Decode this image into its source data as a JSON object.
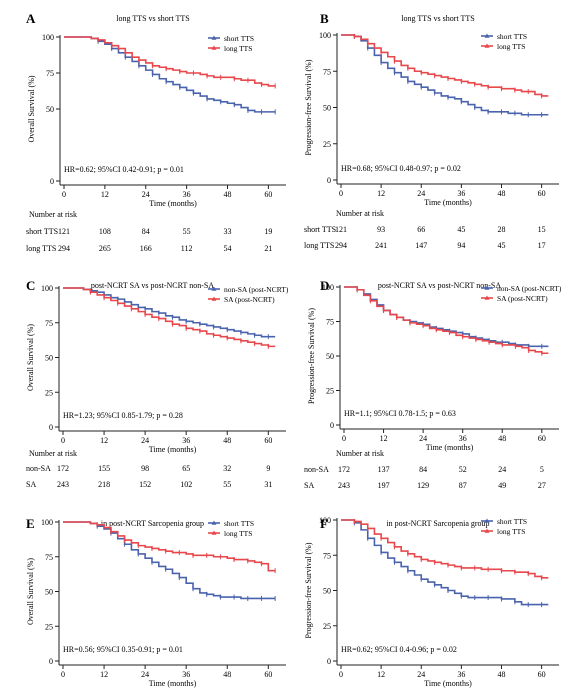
{
  "colors": {
    "blue": "#4a63ad",
    "red": "#e8474b",
    "axis": "#222222"
  },
  "common": {
    "xlabel": "Time (months)",
    "risk_title": "Number at risk"
  },
  "chart_data": [
    {
      "panel": "A",
      "type": "line",
      "title": "long TTS vs short TTS",
      "ylabel": "Overall Survival (%)",
      "xlabel": "Time (months)",
      "xlim": [
        0,
        64
      ],
      "ylim": [
        0,
        100
      ],
      "x_ticks": [
        0,
        12,
        24,
        36,
        48,
        60
      ],
      "y_ticks": [
        0,
        50,
        75,
        100
      ],
      "legend_position": "top-right",
      "annotation": "HR=0.62; 95%CI 0.42-0.91; p = 0.01",
      "series": [
        {
          "name": "short TTS",
          "color": "blue",
          "x": [
            0,
            8,
            10,
            12,
            14,
            16,
            18,
            20,
            22,
            24,
            26,
            28,
            30,
            32,
            34,
            36,
            38,
            40,
            42,
            44,
            46,
            48,
            50,
            52,
            54,
            56,
            58,
            60,
            62
          ],
          "y": [
            100,
            99,
            97,
            95,
            92,
            89,
            86,
            83,
            80,
            77,
            74,
            71,
            69,
            67,
            65,
            63,
            61,
            59,
            57,
            56,
            55,
            54,
            53,
            51,
            49,
            48,
            48,
            48,
            48
          ]
        },
        {
          "name": "long TTS",
          "color": "red",
          "x": [
            0,
            8,
            10,
            12,
            14,
            16,
            18,
            20,
            22,
            24,
            26,
            28,
            30,
            32,
            34,
            36,
            38,
            40,
            42,
            44,
            46,
            48,
            50,
            52,
            54,
            56,
            58,
            60,
            62
          ],
          "y": [
            100,
            99,
            98,
            96,
            94,
            92,
            89,
            86,
            84,
            82,
            80,
            79,
            78,
            77,
            76,
            75,
            75,
            74,
            73,
            72,
            72,
            72,
            71,
            70,
            70,
            68,
            67,
            66,
            66
          ]
        }
      ],
      "risk_table": {
        "times": [
          0,
          12,
          24,
          36,
          48,
          60
        ],
        "rows": [
          {
            "label": "short TTS",
            "values": [
              121,
              108,
              84,
              55,
              33,
              19
            ]
          },
          {
            "label": "long TTS",
            "values": [
              294,
              265,
              166,
              112,
              54,
              21
            ]
          }
        ]
      }
    },
    {
      "panel": "B",
      "type": "line",
      "title": "long TTS vs short TTS",
      "ylabel": "Progression-free Survival (%)",
      "xlabel": "Time (months)",
      "xlim": [
        0,
        64
      ],
      "ylim": [
        0,
        100
      ],
      "x_ticks": [
        0,
        12,
        24,
        36,
        48,
        60
      ],
      "y_ticks": [
        0,
        25,
        50,
        75,
        100
      ],
      "legend_position": "top-right",
      "annotation": "HR=0.68; 95%CI 0.48-0.97; p = 0.02",
      "series": [
        {
          "name": "short TTS",
          "color": "blue",
          "x": [
            0,
            2,
            4,
            6,
            8,
            10,
            12,
            14,
            16,
            18,
            20,
            22,
            24,
            26,
            28,
            30,
            32,
            34,
            36,
            38,
            40,
            42,
            44,
            46,
            48,
            50,
            52,
            54,
            56,
            58,
            60,
            62
          ],
          "y": [
            100,
            100,
            99,
            96,
            91,
            86,
            81,
            77,
            74,
            71,
            68,
            66,
            64,
            62,
            60,
            58,
            57,
            56,
            54,
            52,
            50,
            48,
            47,
            47,
            47,
            46,
            46,
            45,
            45,
            45,
            45,
            45
          ]
        },
        {
          "name": "long TTS",
          "color": "red",
          "x": [
            0,
            2,
            4,
            6,
            8,
            10,
            12,
            14,
            16,
            18,
            20,
            22,
            24,
            26,
            28,
            30,
            32,
            34,
            36,
            38,
            40,
            42,
            44,
            46,
            48,
            50,
            52,
            54,
            56,
            58,
            60,
            62
          ],
          "y": [
            100,
            100,
            99,
            97,
            94,
            91,
            88,
            85,
            82,
            79,
            77,
            75,
            74,
            73,
            72,
            71,
            70,
            69,
            68,
            67,
            66,
            65,
            64,
            64,
            63,
            63,
            62,
            61,
            61,
            59,
            58,
            58
          ]
        }
      ],
      "risk_table": {
        "times": [
          0,
          12,
          24,
          36,
          48,
          60
        ],
        "rows": [
          {
            "label": "short TTS",
            "values": [
              121,
              93,
              66,
              45,
              28,
              15
            ]
          },
          {
            "label": "long TTS",
            "values": [
              294,
              241,
              147,
              94,
              45,
              17
            ]
          }
        ]
      }
    },
    {
      "panel": "C",
      "type": "line",
      "title": "post-NCRT SA vs post-NCRT non-SA",
      "ylabel": "Overall Survival (%)",
      "xlabel": "Time (months)",
      "xlim": [
        0,
        64
      ],
      "ylim": [
        0,
        100
      ],
      "x_ticks": [
        0,
        12,
        24,
        36,
        48,
        60
      ],
      "y_ticks": [
        0,
        25,
        50,
        75,
        100
      ],
      "legend_position": "top-right",
      "annotation": "HR=1.23; 95%CI 0.85-1.79; p = 0.28",
      "series": [
        {
          "name": "non-SA (post-NCRT)",
          "color": "blue",
          "x": [
            0,
            6,
            8,
            10,
            12,
            14,
            16,
            18,
            20,
            22,
            24,
            26,
            28,
            30,
            32,
            34,
            36,
            38,
            40,
            42,
            44,
            46,
            48,
            50,
            52,
            54,
            56,
            58,
            60,
            62
          ],
          "y": [
            100,
            99,
            98,
            97,
            95,
            93,
            92,
            90,
            88,
            86,
            85,
            83,
            82,
            80,
            79,
            77,
            76,
            75,
            74,
            73,
            72,
            71,
            70,
            69,
            68,
            67,
            66,
            65,
            65,
            65
          ]
        },
        {
          "name": "SA (post-NCRT)",
          "color": "red",
          "x": [
            0,
            6,
            8,
            10,
            12,
            14,
            16,
            18,
            20,
            22,
            24,
            26,
            28,
            30,
            32,
            34,
            36,
            38,
            40,
            42,
            44,
            46,
            48,
            50,
            52,
            54,
            56,
            58,
            60,
            62
          ],
          "y": [
            100,
            99,
            97,
            95,
            93,
            91,
            89,
            87,
            85,
            83,
            81,
            79,
            78,
            76,
            74,
            73,
            71,
            70,
            69,
            67,
            66,
            65,
            64,
            63,
            62,
            61,
            60,
            59,
            58,
            58
          ]
        }
      ],
      "risk_table": {
        "times": [
          0,
          12,
          24,
          36,
          48,
          60
        ],
        "rows": [
          {
            "label": "non-SA",
            "values": [
              172,
              155,
              98,
              65,
              32,
              9
            ]
          },
          {
            "label": "SA",
            "values": [
              243,
              218,
              152,
              102,
              55,
              31
            ]
          }
        ]
      }
    },
    {
      "panel": "D",
      "type": "line",
      "title": "post-NCRT SA vs post-NCRT non-SA",
      "ylabel": "Progression-free Survival (%)",
      "xlabel": "Time (months)",
      "xlim": [
        0,
        64
      ],
      "ylim": [
        0,
        100
      ],
      "x_ticks": [
        0,
        12,
        24,
        36,
        48,
        60
      ],
      "y_ticks": [
        0,
        25,
        50,
        75,
        100
      ],
      "legend_position": "top-right",
      "annotation": "HR=1.1; 95%CI 0.78-1.5; p = 0.63",
      "series": [
        {
          "name": "non-SA (post-NCRT)",
          "color": "blue",
          "x": [
            0,
            2,
            4,
            6,
            8,
            10,
            12,
            14,
            16,
            18,
            20,
            22,
            24,
            26,
            28,
            30,
            32,
            34,
            36,
            38,
            40,
            42,
            44,
            46,
            48,
            50,
            52,
            54,
            56,
            58,
            60,
            62
          ],
          "y": [
            100,
            100,
            98,
            95,
            91,
            87,
            83,
            80,
            78,
            76,
            75,
            74,
            73,
            71,
            70,
            69,
            68,
            67,
            66,
            64,
            63,
            62,
            61,
            60,
            60,
            59,
            58,
            58,
            57,
            57,
            57,
            57
          ]
        },
        {
          "name": "SA (post-NCRT)",
          "color": "red",
          "x": [
            0,
            2,
            4,
            6,
            8,
            10,
            12,
            14,
            16,
            18,
            20,
            22,
            24,
            26,
            28,
            30,
            32,
            34,
            36,
            38,
            40,
            42,
            44,
            46,
            48,
            50,
            52,
            54,
            56,
            58,
            60,
            62
          ],
          "y": [
            100,
            100,
            98,
            94,
            90,
            86,
            83,
            80,
            78,
            76,
            74,
            73,
            72,
            70,
            69,
            68,
            67,
            65,
            64,
            63,
            62,
            61,
            60,
            59,
            58,
            58,
            57,
            56,
            54,
            53,
            52,
            52
          ]
        }
      ],
      "risk_table": {
        "times": [
          0,
          12,
          24,
          36,
          48,
          60
        ],
        "rows": [
          {
            "label": "non-SA",
            "values": [
              172,
              137,
              84,
              52,
              24,
              5
            ]
          },
          {
            "label": "SA",
            "values": [
              243,
              197,
              129,
              87,
              49,
              27
            ]
          }
        ]
      }
    },
    {
      "panel": "E",
      "type": "line",
      "title": "in post-NCRT Sarcopenia group",
      "ylabel": "Overall Survival (%)",
      "xlabel": "Time (months)",
      "xlim": [
        0,
        64
      ],
      "ylim": [
        0,
        100
      ],
      "x_ticks": [
        0,
        12,
        24,
        36,
        48,
        60
      ],
      "y_ticks": [
        0,
        25,
        50,
        75,
        100
      ],
      "legend_position": "top-right",
      "annotation": "HR=0.56; 95%CI 0.35-0.91; p = 0.01",
      "series": [
        {
          "name": "short TTS",
          "color": "blue",
          "x": [
            0,
            8,
            10,
            12,
            14,
            16,
            18,
            20,
            22,
            24,
            26,
            28,
            30,
            32,
            34,
            36,
            38,
            40,
            42,
            44,
            46,
            48,
            50,
            52,
            54,
            56,
            58,
            60,
            62
          ],
          "y": [
            100,
            99,
            97,
            95,
            92,
            88,
            84,
            80,
            77,
            74,
            71,
            68,
            66,
            63,
            60,
            56,
            52,
            49,
            48,
            47,
            46,
            46,
            46,
            45,
            45,
            45,
            45,
            45,
            45
          ]
        },
        {
          "name": "long TTS",
          "color": "red",
          "x": [
            0,
            8,
            10,
            12,
            14,
            16,
            18,
            20,
            22,
            24,
            26,
            28,
            30,
            32,
            34,
            36,
            38,
            40,
            42,
            44,
            46,
            48,
            50,
            52,
            54,
            56,
            58,
            60,
            62
          ],
          "y": [
            100,
            99,
            98,
            96,
            93,
            90,
            87,
            85,
            83,
            82,
            81,
            80,
            79,
            78,
            78,
            77,
            76,
            76,
            76,
            75,
            75,
            74,
            73,
            73,
            72,
            71,
            70,
            65,
            65
          ]
        }
      ]
    },
    {
      "panel": "F",
      "type": "line",
      "title": "in post-NCRT Sarcopenia group",
      "ylabel": "Progression-free Survival (%)",
      "xlabel": "Time (months)",
      "xlim": [
        0,
        64
      ],
      "ylim": [
        0,
        100
      ],
      "x_ticks": [
        0,
        12,
        24,
        36,
        48,
        60
      ],
      "y_ticks": [
        0,
        25,
        50,
        75,
        100
      ],
      "legend_position": "top-right",
      "annotation": "HR=0.62; 95%CI 0.4-0.96; p = 0.02",
      "series": [
        {
          "name": "short TTS",
          "color": "blue",
          "x": [
            0,
            2,
            4,
            6,
            8,
            10,
            12,
            14,
            16,
            18,
            20,
            22,
            24,
            26,
            28,
            30,
            32,
            34,
            36,
            38,
            40,
            42,
            44,
            46,
            48,
            50,
            52,
            54,
            56,
            58,
            60,
            62
          ],
          "y": [
            100,
            100,
            98,
            93,
            87,
            82,
            77,
            73,
            70,
            67,
            64,
            61,
            58,
            56,
            54,
            52,
            50,
            48,
            46,
            45,
            45,
            45,
            45,
            45,
            44,
            44,
            42,
            40,
            40,
            40,
            40,
            40
          ]
        },
        {
          "name": "long TTS",
          "color": "red",
          "x": [
            0,
            2,
            4,
            6,
            8,
            10,
            12,
            14,
            16,
            18,
            20,
            22,
            24,
            26,
            28,
            30,
            32,
            34,
            36,
            38,
            40,
            42,
            44,
            46,
            48,
            50,
            52,
            54,
            56,
            58,
            60,
            62
          ],
          "y": [
            100,
            100,
            99,
            97,
            94,
            90,
            87,
            84,
            81,
            78,
            76,
            74,
            72,
            71,
            70,
            69,
            68,
            67,
            66,
            66,
            66,
            65,
            65,
            65,
            64,
            64,
            63,
            63,
            62,
            60,
            59,
            59
          ]
        }
      ]
    }
  ]
}
